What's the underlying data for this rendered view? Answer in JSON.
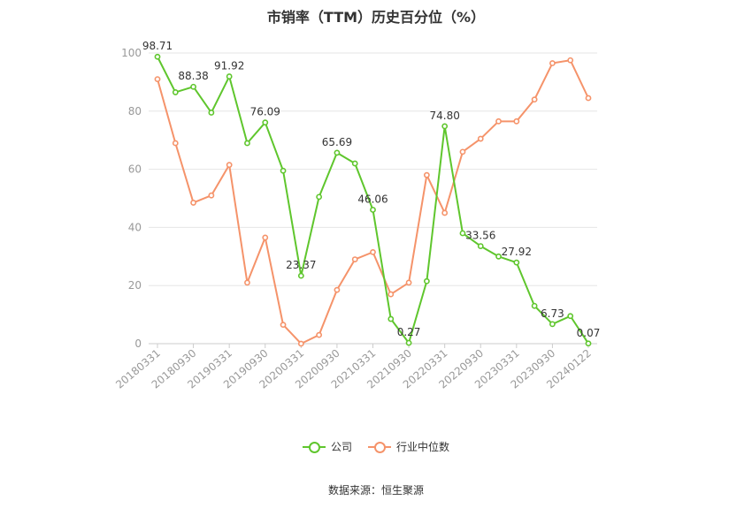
{
  "title": "市销率（TTM）历史百分位（%）",
  "source_text": "数据来源：恒生聚源",
  "legend": [
    {
      "name": "公司",
      "color": "#5fc62d"
    },
    {
      "name": "行业中位数",
      "color": "#f5936a"
    }
  ],
  "chart_data": {
    "type": "line",
    "title": "市销率（TTM）历史百分位（%）",
    "x_tick_labels": [
      "20180331",
      "20180930",
      "20190331",
      "20190930",
      "20200331",
      "20200930",
      "20210331",
      "20210930",
      "20220331",
      "20220930",
      "20230331",
      "20230930",
      "20240122"
    ],
    "x": [
      "20180331",
      "20180630",
      "20180930",
      "20181231",
      "20190331",
      "20190630",
      "20190930",
      "20191231",
      "20200331",
      "20200630",
      "20200930",
      "20201231",
      "20210331",
      "20210630",
      "20210930",
      "20211231",
      "20220331",
      "20220630",
      "20220930",
      "20221231",
      "20230331",
      "20230630",
      "20230930",
      "20231231",
      "20240122"
    ],
    "ylim": [
      0,
      100
    ],
    "yticks": [
      0,
      20,
      40,
      60,
      80,
      100
    ],
    "grid": true,
    "legend_position": "bottom",
    "series": [
      {
        "name": "公司",
        "color": "#5fc62d",
        "values": [
          98.71,
          86.5,
          88.38,
          79.5,
          91.92,
          69.0,
          76.09,
          59.5,
          23.37,
          50.5,
          65.69,
          62.0,
          46.06,
          8.5,
          0.27,
          21.5,
          74.8,
          38.0,
          33.56,
          30.0,
          27.92,
          13.0,
          6.73,
          9.5,
          0.07
        ],
        "labels": [
          "98.71",
          null,
          "88.38",
          null,
          "91.92",
          null,
          "76.09",
          null,
          "23.37",
          null,
          "65.69",
          null,
          "46.06",
          null,
          "0.27",
          null,
          "74.80",
          null,
          "33.56",
          null,
          "27.92",
          null,
          "6.73",
          null,
          "0.07"
        ]
      },
      {
        "name": "行业中位数",
        "color": "#f5936a",
        "values": [
          91.0,
          69.0,
          48.5,
          51.0,
          61.5,
          21.0,
          36.5,
          6.5,
          0.0,
          3.0,
          18.5,
          29.0,
          31.5,
          17.0,
          21.0,
          58.0,
          45.0,
          66.0,
          70.5,
          76.5,
          76.5,
          84.0,
          96.5,
          97.5,
          84.5
        ]
      }
    ]
  }
}
